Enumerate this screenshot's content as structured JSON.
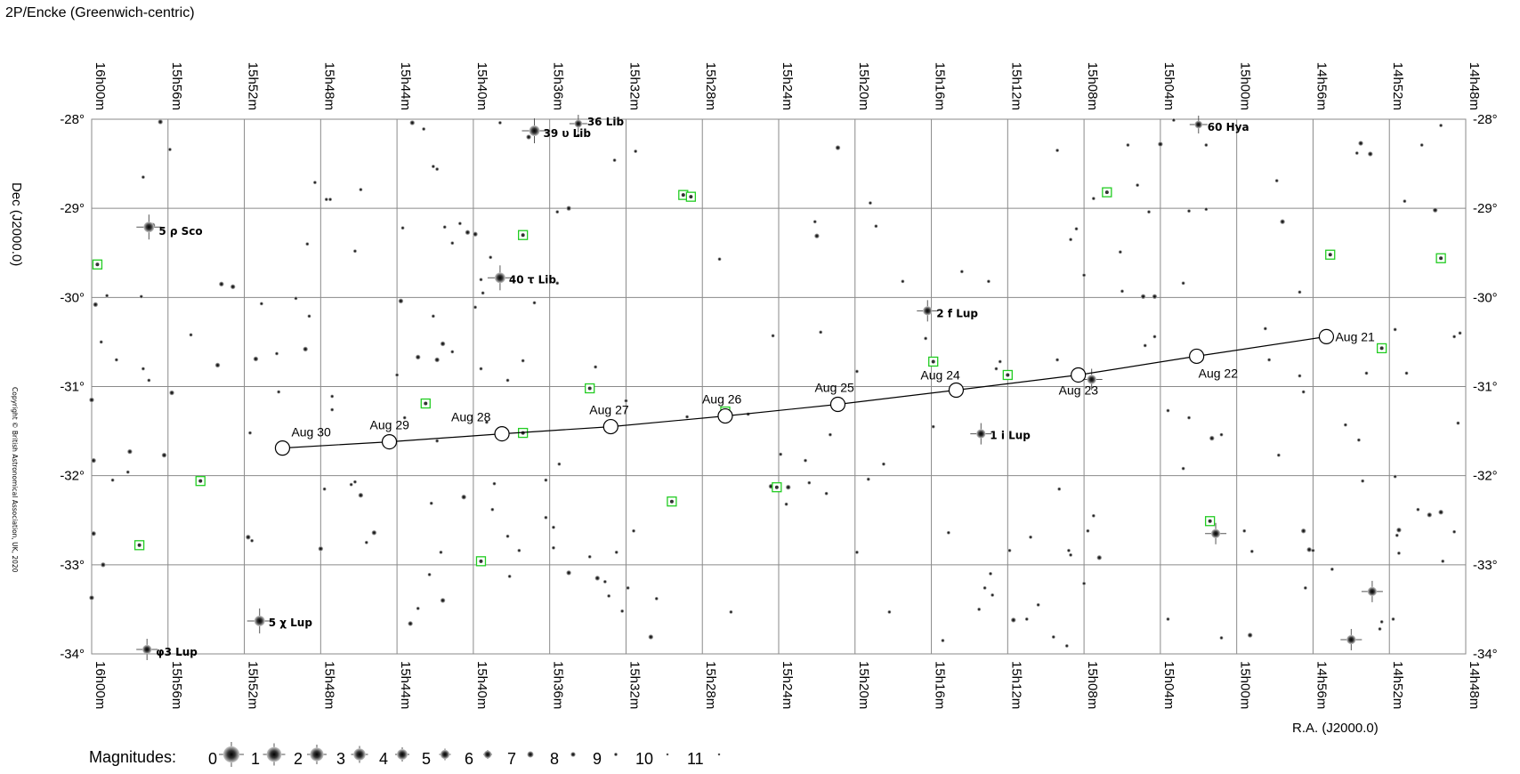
{
  "header": {
    "title": "2P/Encke  (Greenwich-centric)"
  },
  "axes": {
    "ra_label": "R.A. (J2000.0)",
    "dec_label": "Dec (J2000.0)",
    "ra_ticks": [
      "16h00m",
      "15h56m",
      "15h52m",
      "15h48m",
      "15h44m",
      "15h40m",
      "15h36m",
      "15h32m",
      "15h28m",
      "15h24m",
      "15h20m",
      "15h16m",
      "15h12m",
      "15h08m",
      "15h04m",
      "15h00m",
      "14h56m",
      "14h52m",
      "14h48m"
    ],
    "dec_ticks": [
      "-28°",
      "-29°",
      "-30°",
      "-31°",
      "-32°",
      "-33°",
      "-34°"
    ]
  },
  "copyright": "Copyright © British Astronomical Association, UK, 2020",
  "magnitudes": {
    "label": "Magnitudes:",
    "values": [
      "0",
      "1",
      "2",
      "3",
      "4",
      "5",
      "6",
      "7",
      "8",
      "9",
      "10",
      "11"
    ]
  },
  "chart_data": {
    "type": "scatter",
    "ra_range_min": [
      960,
      888
    ],
    "dec_range": [
      -34,
      -28
    ],
    "track": [
      {
        "label": "Aug 21",
        "ra_min": 895.3,
        "dec": -30.44
      },
      {
        "label": "Aug 22",
        "ra_min": 902.1,
        "dec": -30.66
      },
      {
        "label": "Aug 23",
        "ra_min": 908.3,
        "dec": -30.87
      },
      {
        "label": "Aug 24",
        "ra_min": 914.7,
        "dec": -31.04
      },
      {
        "label": "Aug 25",
        "ra_min": 920.9,
        "dec": -31.2
      },
      {
        "label": "Aug 26",
        "ra_min": 926.8,
        "dec": -31.33
      },
      {
        "label": "Aug 27",
        "ra_min": 932.8,
        "dec": -31.45
      },
      {
        "label": "Aug 28",
        "ra_min": 938.5,
        "dec": -31.53
      },
      {
        "label": "Aug 29",
        "ra_min": 944.4,
        "dec": -31.62
      },
      {
        "label": "Aug 30",
        "ra_min": 950.0,
        "dec": -31.69
      }
    ],
    "named_stars": [
      {
        "label": "5 ρ Sco",
        "ra_min": 957.0,
        "dec": -29.21,
        "mag": 4
      },
      {
        "label": "40 τ Lib",
        "ra_min": 938.6,
        "dec": -29.78,
        "mag": 4
      },
      {
        "label": "39 υ Lib",
        "ra_min": 936.8,
        "dec": -28.13,
        "mag": 4
      },
      {
        "label": "36 Lib",
        "ra_min": 934.5,
        "dec": -28.05,
        "mag": 6
      },
      {
        "label": "2 f Lup",
        "ra_min": 916.2,
        "dec": -30.15,
        "mag": 5
      },
      {
        "label": "1 i Lup",
        "ra_min": 913.4,
        "dec": -31.53,
        "mag": 5
      },
      {
        "label": "60 Hya",
        "ra_min": 902.0,
        "dec": -28.06,
        "mag": 6
      },
      {
        "label": "5 χ Lup",
        "ra_min": 951.2,
        "dec": -33.63,
        "mag": 4
      },
      {
        "label": "φ3 Lup",
        "ra_min": 957.1,
        "dec": -33.95,
        "mag": 5
      }
    ],
    "bright_stars": [
      {
        "ra_min": 907.6,
        "dec": -30.92,
        "mag": 5
      },
      {
        "ra_min": 901.1,
        "dec": -32.65,
        "mag": 5
      },
      {
        "ra_min": 892.9,
        "dec": -33.3,
        "mag": 5
      },
      {
        "ra_min": 894.0,
        "dec": -33.84,
        "mag": 5
      }
    ],
    "variable_stars": [
      {
        "ra_min": 959.7,
        "dec": -29.63
      },
      {
        "ra_min": 957.5,
        "dec": -32.78
      },
      {
        "ra_min": 954.3,
        "dec": -32.06
      },
      {
        "ra_min": 942.5,
        "dec": -31.19
      },
      {
        "ra_min": 939.6,
        "dec": -32.96
      },
      {
        "ra_min": 937.4,
        "dec": -29.3
      },
      {
        "ra_min": 937.4,
        "dec": -31.52
      },
      {
        "ra_min": 933.9,
        "dec": -31.02
      },
      {
        "ra_min": 929.6,
        "dec": -32.29
      },
      {
        "ra_min": 929.0,
        "dec": -28.85
      },
      {
        "ra_min": 928.6,
        "dec": -28.87
      },
      {
        "ra_min": 926.8,
        "dec": -31.28
      },
      {
        "ra_min": 924.1,
        "dec": -32.13
      },
      {
        "ra_min": 915.9,
        "dec": -30.72
      },
      {
        "ra_min": 912.0,
        "dec": -30.87
      },
      {
        "ra_min": 906.8,
        "dec": -28.82
      },
      {
        "ra_min": 901.4,
        "dec": -32.51
      },
      {
        "ra_min": 895.1,
        "dec": -29.52
      },
      {
        "ra_min": 892.4,
        "dec": -30.57
      },
      {
        "ra_min": 889.3,
        "dec": -29.56
      }
    ],
    "field_stars": [
      [
        956.4,
        -28.03,
        8
      ],
      [
        955.9,
        -28.34,
        9
      ],
      [
        957.3,
        -28.65,
        9
      ],
      [
        959.8,
        -29.64,
        8
      ],
      [
        959.8,
        -30.08,
        8
      ],
      [
        959.2,
        -29.98,
        9
      ],
      [
        957.4,
        -29.99,
        9
      ],
      [
        956.8,
        -29.19,
        8
      ],
      [
        960.0,
        -31.15,
        8
      ],
      [
        959.9,
        -31.83,
        8
      ],
      [
        959.5,
        -30.5,
        9
      ],
      [
        958.7,
        -30.7,
        9
      ],
      [
        957.3,
        -30.8,
        9
      ],
      [
        957.0,
        -30.93,
        9
      ],
      [
        955.8,
        -31.07,
        8
      ],
      [
        958.0,
        -31.73,
        8
      ],
      [
        958.1,
        -31.96,
        9
      ],
      [
        956.2,
        -31.77,
        8
      ],
      [
        958.9,
        -32.05,
        9
      ],
      [
        959.9,
        -32.65,
        8
      ],
      [
        960.0,
        -33.37,
        8
      ],
      [
        959.4,
        -33.0,
        8
      ],
      [
        954.8,
        -30.42,
        9
      ],
      [
        953.2,
        -29.85,
        8
      ],
      [
        952.6,
        -29.88,
        8
      ],
      [
        953.4,
        -30.76,
        8
      ],
      [
        951.1,
        -30.07,
        9
      ],
      [
        950.3,
        -30.63,
        9
      ],
      [
        951.4,
        -30.69,
        8
      ],
      [
        951.7,
        -31.52,
        9
      ],
      [
        951.8,
        -32.69,
        8
      ],
      [
        951.6,
        -32.73,
        9
      ],
      [
        950.2,
        -31.06,
        9
      ],
      [
        949.3,
        -30.01,
        9
      ],
      [
        948.7,
        -29.4,
        9
      ],
      [
        948.3,
        -28.71,
        9
      ],
      [
        947.7,
        -28.9,
        9
      ],
      [
        947.5,
        -28.9,
        9
      ],
      [
        946.2,
        -29.48,
        9
      ],
      [
        945.9,
        -28.79,
        9
      ],
      [
        948.8,
        -30.58,
        8
      ],
      [
        948.6,
        -30.21,
        9
      ],
      [
        947.4,
        -31.11,
        9
      ],
      [
        947.4,
        -31.26,
        9
      ],
      [
        946.4,
        -32.1,
        9
      ],
      [
        946.2,
        -32.07,
        9
      ],
      [
        947.8,
        -32.15,
        9
      ],
      [
        948.0,
        -32.82,
        8
      ],
      [
        945.9,
        -32.22,
        8
      ],
      [
        945.6,
        -32.75,
        9
      ],
      [
        945.2,
        -32.64,
        8
      ],
      [
        944.0,
        -30.87,
        9
      ],
      [
        943.8,
        -30.04,
        8
      ],
      [
        943.7,
        -29.22,
        9
      ],
      [
        943.2,
        -28.04,
        8
      ],
      [
        942.6,
        -28.11,
        9
      ],
      [
        942.1,
        -28.53,
        9
      ],
      [
        941.9,
        -28.56,
        9
      ],
      [
        941.5,
        -29.21,
        9
      ],
      [
        941.1,
        -29.39,
        9
      ],
      [
        940.7,
        -29.17,
        9
      ],
      [
        940.3,
        -29.27,
        8
      ],
      [
        942.1,
        -30.21,
        9
      ],
      [
        941.6,
        -30.52,
        8
      ],
      [
        942.9,
        -30.67,
        8
      ],
      [
        941.9,
        -30.7,
        8
      ],
      [
        941.1,
        -30.61,
        9
      ],
      [
        941.9,
        -31.61,
        9
      ],
      [
        943.6,
        -31.35,
        9
      ],
      [
        942.2,
        -32.31,
        9
      ],
      [
        940.5,
        -32.24,
        8
      ],
      [
        941.7,
        -32.86,
        9
      ],
      [
        942.3,
        -33.11,
        9
      ],
      [
        942.9,
        -33.49,
        9
      ],
      [
        943.3,
        -33.66,
        8
      ],
      [
        941.6,
        -33.4,
        8
      ],
      [
        939.6,
        -29.8,
        9
      ],
      [
        939.5,
        -29.95,
        9
      ],
      [
        939.1,
        -29.55,
        9
      ],
      [
        938.6,
        -28.04,
        9
      ],
      [
        939.9,
        -29.29,
        8
      ],
      [
        939.9,
        -30.11,
        9
      ],
      [
        939.6,
        -30.8,
        9
      ],
      [
        939.3,
        -31.4,
        9
      ],
      [
        938.2,
        -30.93,
        9
      ],
      [
        936.8,
        -30.06,
        9
      ],
      [
        935.6,
        -29.84,
        9
      ],
      [
        937.4,
        -30.71,
        9
      ],
      [
        938.9,
        -32.09,
        9
      ],
      [
        939.0,
        -32.38,
        9
      ],
      [
        938.2,
        -32.68,
        9
      ],
      [
        937.6,
        -32.84,
        9
      ],
      [
        938.1,
        -33.13,
        9
      ],
      [
        936.2,
        -32.47,
        9
      ],
      [
        935.8,
        -32.81,
        9
      ],
      [
        935.8,
        -32.58,
        9
      ],
      [
        936.2,
        -32.05,
        9
      ],
      [
        935.5,
        -31.87,
        9
      ],
      [
        935.0,
        -33.09,
        8
      ],
      [
        933.9,
        -32.91,
        9
      ],
      [
        933.5,
        -33.15,
        8
      ],
      [
        932.9,
        -33.35,
        9
      ],
      [
        933.1,
        -33.19,
        9
      ],
      [
        932.5,
        -32.86,
        9
      ],
      [
        931.9,
        -33.26,
        9
      ],
      [
        932.0,
        -31.16,
        9
      ],
      [
        933.6,
        -30.78,
        9
      ],
      [
        931.5,
        -28.36,
        9
      ],
      [
        932.6,
        -28.46,
        9
      ],
      [
        934.5,
        -28.18,
        9
      ],
      [
        935.0,
        -29.0,
        8
      ],
      [
        935.6,
        -29.04,
        9
      ],
      [
        937.1,
        -28.2,
        8
      ],
      [
        931.6,
        -32.62,
        9
      ],
      [
        932.2,
        -33.52,
        9
      ],
      [
        930.7,
        -33.81,
        8
      ],
      [
        930.4,
        -33.38,
        9
      ],
      [
        928.8,
        -31.34,
        9
      ],
      [
        927.1,
        -29.57,
        9
      ],
      [
        926.5,
        -33.53,
        9
      ],
      [
        925.6,
        -31.31,
        9
      ],
      [
        923.9,
        -31.76,
        9
      ],
      [
        922.6,
        -31.83,
        9
      ],
      [
        923.5,
        -32.13,
        8
      ],
      [
        924.4,
        -32.12,
        8
      ],
      [
        923.6,
        -32.32,
        9
      ],
      [
        922.4,
        -32.08,
        9
      ],
      [
        921.5,
        -32.2,
        9
      ],
      [
        924.3,
        -30.43,
        9
      ],
      [
        922.1,
        -29.15,
        9
      ],
      [
        922.0,
        -29.31,
        8
      ],
      [
        921.8,
        -30.39,
        9
      ],
      [
        921.3,
        -31.54,
        9
      ],
      [
        919.9,
        -30.83,
        9
      ],
      [
        919.9,
        -32.86,
        9
      ],
      [
        918.2,
        -33.53,
        9
      ],
      [
        920.9,
        -28.32,
        8
      ],
      [
        919.2,
        -28.94,
        9
      ],
      [
        918.9,
        -29.2,
        9
      ],
      [
        917.5,
        -29.82,
        9
      ],
      [
        918.5,
        -31.87,
        9
      ],
      [
        919.3,
        -32.04,
        9
      ],
      [
        916.3,
        -30.46,
        9
      ],
      [
        915.9,
        -31.45,
        9
      ],
      [
        915.1,
        -32.64,
        9
      ],
      [
        915.4,
        -33.85,
        9
      ],
      [
        914.4,
        -29.71,
        9
      ],
      [
        913.5,
        -33.5,
        9
      ],
      [
        913.2,
        -33.26,
        9
      ],
      [
        912.9,
        -33.1,
        9
      ],
      [
        912.8,
        -33.34,
        9
      ],
      [
        913.0,
        -29.82,
        9
      ],
      [
        912.6,
        -30.8,
        9
      ],
      [
        912.4,
        -30.72,
        9
      ],
      [
        911.9,
        -32.84,
        9
      ],
      [
        911.7,
        -33.62,
        8
      ],
      [
        911.0,
        -33.61,
        9
      ],
      [
        910.8,
        -32.69,
        9
      ],
      [
        910.4,
        -33.45,
        9
      ],
      [
        909.6,
        -33.81,
        9
      ],
      [
        908.9,
        -33.91,
        9
      ],
      [
        908.0,
        -33.21,
        9
      ],
      [
        908.8,
        -32.84,
        9
      ],
      [
        908.7,
        -32.89,
        9
      ],
      [
        907.8,
        -32.62,
        9
      ],
      [
        907.5,
        -32.45,
        9
      ],
      [
        907.2,
        -32.92,
        8
      ],
      [
        909.3,
        -32.15,
        9
      ],
      [
        909.4,
        -30.7,
        9
      ],
      [
        909.4,
        -28.35,
        9
      ],
      [
        908.7,
        -29.35,
        9
      ],
      [
        908.4,
        -29.23,
        9
      ],
      [
        908.0,
        -29.75,
        9
      ],
      [
        907.5,
        -28.89,
        9
      ],
      [
        906.1,
        -29.49,
        9
      ],
      [
        906.0,
        -29.93,
        9
      ],
      [
        905.7,
        -28.29,
        9
      ],
      [
        905.2,
        -28.74,
        9
      ],
      [
        904.9,
        -29.99,
        8
      ],
      [
        904.6,
        -29.04,
        9
      ],
      [
        904.8,
        -30.54,
        9
      ],
      [
        904.3,
        -30.44,
        9
      ],
      [
        904.3,
        -29.99,
        8
      ],
      [
        904.0,
        -28.28,
        8
      ],
      [
        903.3,
        -28.01,
        9
      ],
      [
        902.8,
        -29.84,
        9
      ],
      [
        902.5,
        -29.03,
        9
      ],
      [
        902.8,
        -31.92,
        9
      ],
      [
        902.5,
        -31.35,
        9
      ],
      [
        901.6,
        -29.01,
        9
      ],
      [
        901.6,
        -28.29,
        9
      ],
      [
        901.3,
        -31.58,
        8
      ],
      [
        900.8,
        -31.54,
        9
      ],
      [
        900.8,
        -33.82,
        9
      ],
      [
        899.3,
        -33.79,
        8
      ],
      [
        899.6,
        -32.62,
        9
      ],
      [
        899.2,
        -32.85,
        9
      ],
      [
        903.6,
        -33.61,
        9
      ],
      [
        903.6,
        -31.27,
        9
      ],
      [
        897.9,
        -28.69,
        9
      ],
      [
        897.6,
        -29.15,
        8
      ],
      [
        896.7,
        -29.94,
        9
      ],
      [
        896.7,
        -30.88,
        9
      ],
      [
        896.5,
        -31.06,
        9
      ],
      [
        896.5,
        -32.62,
        8
      ],
      [
        896.2,
        -32.83,
        8
      ],
      [
        896.0,
        -32.84,
        9
      ],
      [
        896.4,
        -33.26,
        9
      ],
      [
        895.0,
        -33.05,
        9
      ],
      [
        897.8,
        -31.77,
        9
      ],
      [
        898.5,
        -30.35,
        9
      ],
      [
        898.3,
        -30.7,
        9
      ],
      [
        894.3,
        -31.43,
        9
      ],
      [
        893.6,
        -31.6,
        9
      ],
      [
        893.4,
        -32.06,
        9
      ],
      [
        893.2,
        -30.85,
        9
      ],
      [
        893.7,
        -28.38,
        9
      ],
      [
        893.5,
        -28.27,
        8
      ],
      [
        893.0,
        -28.39,
        8
      ],
      [
        892.5,
        -33.72,
        9
      ],
      [
        892.4,
        -33.64,
        9
      ],
      [
        891.8,
        -33.61,
        9
      ],
      [
        891.7,
        -32.01,
        9
      ],
      [
        891.5,
        -32.61,
        8
      ],
      [
        891.6,
        -32.67,
        9
      ],
      [
        891.5,
        -32.87,
        9
      ],
      [
        891.1,
        -30.85,
        9
      ],
      [
        891.7,
        -30.36,
        9
      ],
      [
        891.2,
        -28.92,
        9
      ],
      [
        890.5,
        -32.38,
        9
      ],
      [
        890.3,
        -28.29,
        9
      ],
      [
        889.9,
        -32.44,
        8
      ],
      [
        889.6,
        -29.02,
        8
      ],
      [
        889.3,
        -32.41,
        8
      ],
      [
        889.2,
        -32.96,
        9
      ],
      [
        888.6,
        -32.63,
        9
      ],
      [
        888.4,
        -31.41,
        9
      ],
      [
        888.3,
        -30.4,
        9
      ],
      [
        888.6,
        -30.44,
        9
      ],
      [
        889.3,
        -28.07,
        9
      ]
    ]
  }
}
